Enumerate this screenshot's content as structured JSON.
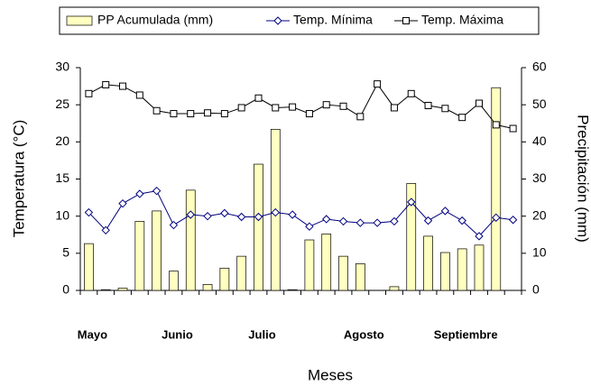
{
  "chart_data": {
    "type": "combo",
    "x_label": "Meses",
    "y_label": "Temperatura (°C)",
    "y2_label": "Precipitación (mm)",
    "categories": [
      "Mayo",
      null,
      null,
      null,
      null,
      "Junio",
      null,
      null,
      null,
      null,
      "Julio",
      null,
      null,
      null,
      null,
      null,
      "Agosto",
      null,
      null,
      null,
      null,
      null,
      "Septiembre",
      null,
      null,
      null
    ],
    "series": [
      {
        "name": "PP Acumulada (mm)",
        "type": "bar",
        "axis": "y2",
        "color": "#ffffc0",
        "values": [
          12.6,
          0.2,
          0.6,
          18.6,
          21.4,
          5.2,
          27,
          1.6,
          6,
          9.2,
          34,
          43.4,
          0.2,
          13.6,
          15.2,
          9.2,
          7.2,
          0,
          1,
          28.8,
          14.6,
          10.2,
          11.2,
          12.2,
          54.6,
          0
        ]
      },
      {
        "name": "Temp. Mínima",
        "type": "line",
        "marker": "diamond",
        "color": "#000080",
        "values": [
          10.5,
          8.1,
          11.7,
          13,
          13.4,
          8.8,
          10.2,
          10,
          10.4,
          9.9,
          9.9,
          10.5,
          10.2,
          8.6,
          9.6,
          9.3,
          9.1,
          9.1,
          9.3,
          11.9,
          9.4,
          10.7,
          9.4,
          7.3,
          9.8,
          9.5
        ]
      },
      {
        "name": "Temp. Máxima",
        "type": "line",
        "marker": "square",
        "color": "#000000",
        "values": [
          26.5,
          27.7,
          27.5,
          26.3,
          24.2,
          23.8,
          23.8,
          23.9,
          23.8,
          24.6,
          25.9,
          24.6,
          24.7,
          23.8,
          25,
          24.8,
          23.4,
          27.8,
          24.6,
          26.5,
          24.9,
          24.5,
          23.3,
          25.2,
          22.3,
          21.8
        ]
      }
    ],
    "ylim": [
      0,
      30
    ],
    "yticks": [
      0,
      5,
      10,
      15,
      20,
      25,
      30
    ],
    "y2lim": [
      0,
      60
    ],
    "y2ticks": [
      0,
      10,
      20,
      30,
      40,
      50,
      60
    ],
    "grid": false,
    "legend": "top"
  }
}
